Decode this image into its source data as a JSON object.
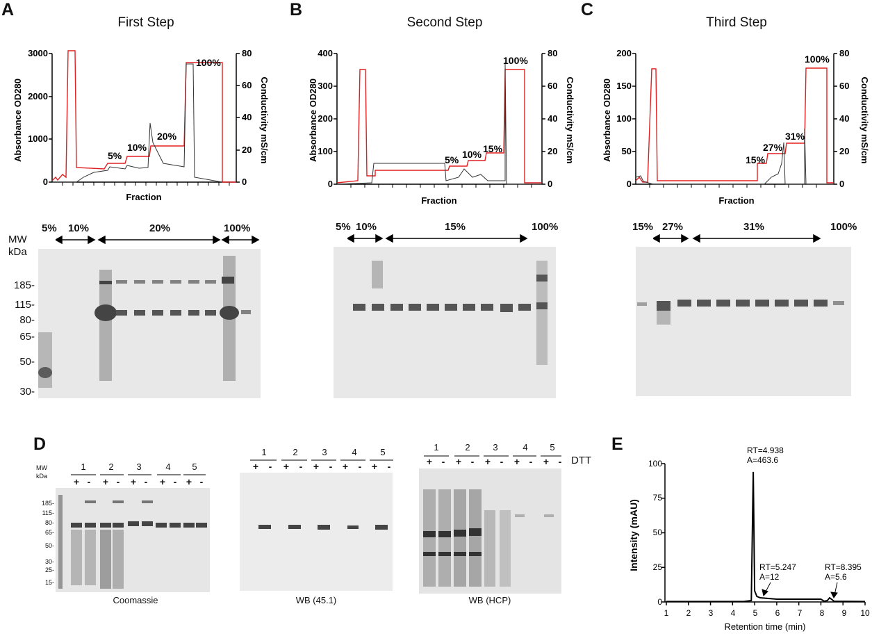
{
  "panels": {
    "A": {
      "label": "A",
      "title": "First Step",
      "chart_data": {
        "type": "line",
        "xlabel": "Fraction",
        "ylabel_left": "Absorbance OD280",
        "ylabel_right": "Conductivity mS/cm",
        "left_ticks": [
          "0",
          "1000",
          "2000",
          "3000"
        ],
        "right_ticks": [
          "0",
          "20",
          "40",
          "60",
          "80"
        ],
        "step_labels": [
          "5%",
          "10%",
          "20%",
          "100%"
        ]
      },
      "gel": {
        "mw_header": [
          "MW",
          "kDa"
        ],
        "mw_markers": [
          "185-",
          "115-",
          "80-",
          "65-",
          "50-",
          "30-"
        ],
        "range_labels": [
          "5%",
          "10%",
          "20%",
          "100%"
        ]
      }
    },
    "B": {
      "label": "B",
      "title": "Second Step",
      "chart_data": {
        "type": "line",
        "xlabel": "Fraction",
        "ylabel_left": "Absorbance OD280",
        "ylabel_right": "Conductivity mS/cm",
        "left_ticks": [
          "0",
          "100",
          "200",
          "300",
          "400"
        ],
        "right_ticks": [
          "0",
          "20",
          "40",
          "60",
          "80"
        ],
        "step_labels": [
          "5%",
          "10%",
          "15%",
          "100%"
        ]
      },
      "gel": {
        "range_labels": [
          "5%",
          "10%",
          "15%",
          "100%"
        ]
      }
    },
    "C": {
      "label": "C",
      "title": "Third Step",
      "chart_data": {
        "type": "line",
        "xlabel": "Fraction",
        "ylabel_left": "Absorbance OD280",
        "ylabel_right": "Conductivity mS/cm",
        "left_ticks": [
          "0",
          "50",
          "100",
          "150",
          "200"
        ],
        "right_ticks": [
          "0",
          "20",
          "40",
          "60",
          "80"
        ],
        "step_labels": [
          "15%",
          "27%",
          "31%",
          "100%"
        ]
      },
      "gel": {
        "range_labels": [
          "15%",
          "27%",
          "31%",
          "100%"
        ]
      }
    },
    "D": {
      "label": "D",
      "mw_header": [
        "MW",
        "kDa"
      ],
      "mw_markers": [
        "185-",
        "115-",
        "80-",
        "65-",
        "50-",
        "30-",
        "25-",
        "15-"
      ],
      "lanes": [
        "1",
        "2",
        "3",
        "4",
        "5"
      ],
      "plus": "+",
      "minus": "-",
      "dtt_label": "DTT",
      "captions": [
        "Coomassie",
        "WB (45.1)",
        "WB (HCP)"
      ]
    },
    "E": {
      "label": "E",
      "chart_data": {
        "type": "line",
        "xlabel": "Retention time (min)",
        "ylabel": "Intensity (mAU)",
        "x_ticks": [
          "1",
          "2",
          "3",
          "4",
          "5",
          "6",
          "7",
          "8",
          "9",
          "10"
        ],
        "y_ticks": [
          "0",
          "25",
          "50",
          "75",
          "100"
        ],
        "xlim": [
          1,
          10
        ],
        "ylim": [
          0,
          100
        ],
        "peaks": [
          {
            "rt": 4.938,
            "height": 94,
            "label_rt": "RT=4.938",
            "label_a": "A=463.6"
          },
          {
            "rt": 5.247,
            "height": 3,
            "label_rt": "RT=5.247",
            "label_a": "A=12"
          },
          {
            "rt": 8.395,
            "height": 3,
            "label_rt": "RT=8.395",
            "label_a": "A=5.6"
          }
        ]
      }
    }
  }
}
